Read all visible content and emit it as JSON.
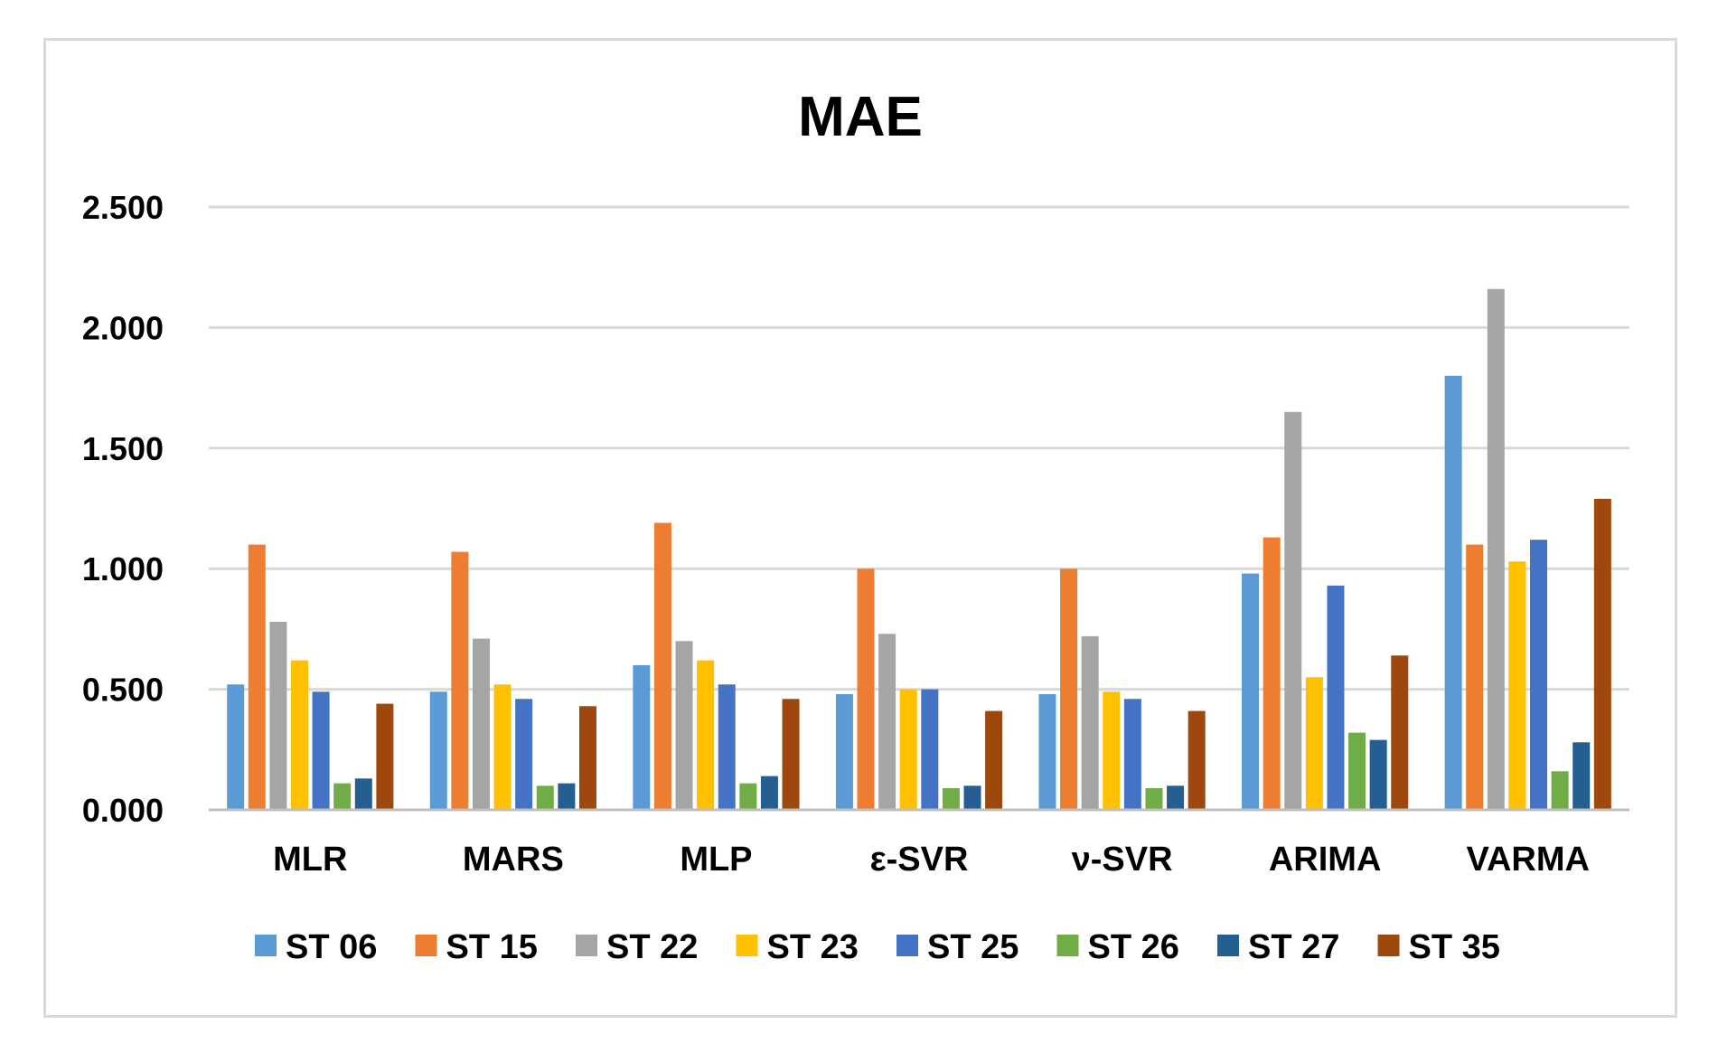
{
  "chart_data": {
    "type": "bar",
    "title": "MAE",
    "xlabel": "",
    "ylabel": "",
    "ylim": [
      0,
      2.5
    ],
    "yticks": [
      0,
      0.5,
      1.0,
      1.5,
      2.0,
      2.5
    ],
    "ytick_labels": [
      "0.000",
      "0.500",
      "1.000",
      "1.500",
      "2.000",
      "2.500"
    ],
    "grid": true,
    "legend_position": "bottom",
    "categories": [
      "MLR",
      "MARS",
      "MLP",
      "ε-SVR",
      "ν-SVR",
      "ARIMA",
      "VARMA"
    ],
    "series": [
      {
        "name": "ST 06",
        "color": "#5b9bd5",
        "values": [
          0.52,
          0.49,
          0.6,
          0.48,
          0.48,
          0.98,
          1.8
        ]
      },
      {
        "name": "ST 15",
        "color": "#ed7d31",
        "values": [
          1.1,
          1.07,
          1.19,
          1.0,
          1.0,
          1.13,
          1.1
        ]
      },
      {
        "name": "ST 22",
        "color": "#a5a5a5",
        "values": [
          0.78,
          0.71,
          0.7,
          0.73,
          0.72,
          1.65,
          2.16
        ]
      },
      {
        "name": "ST 23",
        "color": "#ffc000",
        "values": [
          0.62,
          0.52,
          0.62,
          0.5,
          0.49,
          0.55,
          1.03
        ]
      },
      {
        "name": "ST 25",
        "color": "#4472c4",
        "values": [
          0.49,
          0.46,
          0.52,
          0.5,
          0.46,
          0.93,
          1.12
        ]
      },
      {
        "name": "ST 26",
        "color": "#70ad47",
        "values": [
          0.11,
          0.1,
          0.11,
          0.09,
          0.09,
          0.32,
          0.16
        ]
      },
      {
        "name": "ST 27",
        "color": "#255e91",
        "values": [
          0.13,
          0.11,
          0.14,
          0.1,
          0.1,
          0.29,
          0.28
        ]
      },
      {
        "name": "ST 35",
        "color": "#9e480e",
        "values": [
          0.44,
          0.43,
          0.46,
          0.41,
          0.41,
          0.64,
          1.29
        ]
      }
    ]
  }
}
